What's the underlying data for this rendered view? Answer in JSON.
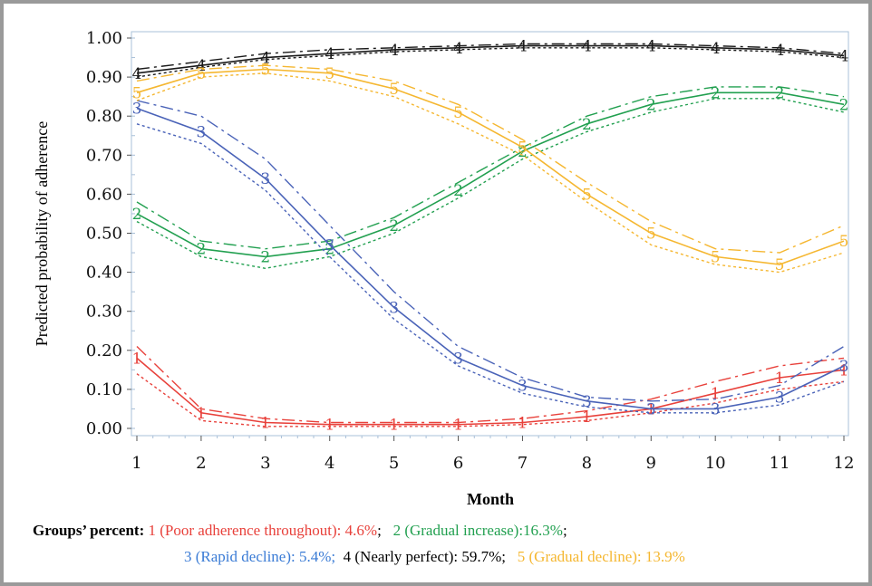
{
  "chart_data": {
    "type": "line",
    "xlabel": "Month",
    "ylabel": "Predicted probability of adherence",
    "x": [
      1,
      2,
      3,
      4,
      5,
      6,
      7,
      8,
      9,
      10,
      11,
      12
    ],
    "x_ticks": [
      "1",
      "2",
      "3",
      "4",
      "5",
      "6",
      "7",
      "8",
      "9",
      "10",
      "11",
      "12"
    ],
    "y_ticks": [
      "0.00",
      "0.10",
      "0.20",
      "0.30",
      "0.40",
      "0.50",
      "0.60",
      "0.70",
      "0.80",
      "0.90",
      "1.00"
    ],
    "xlim": [
      1,
      12
    ],
    "ylim": [
      0,
      1.0
    ],
    "grid": false,
    "series": [
      {
        "marker": "1",
        "color": "#e8413b",
        "values": [
          0.18,
          0.04,
          0.015,
          0.01,
          0.01,
          0.01,
          0.015,
          0.03,
          0.05,
          0.09,
          0.13,
          0.15
        ],
        "upper": [
          0.21,
          0.05,
          0.025,
          0.015,
          0.015,
          0.015,
          0.025,
          0.045,
          0.075,
          0.12,
          0.16,
          0.18
        ],
        "lower": [
          0.14,
          0.02,
          0.005,
          0.005,
          0.005,
          0.005,
          0.01,
          0.02,
          0.04,
          0.065,
          0.1,
          0.12
        ]
      },
      {
        "marker": "2",
        "color": "#22a050",
        "values": [
          0.55,
          0.46,
          0.44,
          0.46,
          0.52,
          0.61,
          0.71,
          0.78,
          0.83,
          0.86,
          0.86,
          0.83
        ],
        "upper": [
          0.58,
          0.48,
          0.46,
          0.48,
          0.54,
          0.63,
          0.72,
          0.8,
          0.85,
          0.875,
          0.875,
          0.85
        ],
        "lower": [
          0.53,
          0.44,
          0.41,
          0.44,
          0.5,
          0.59,
          0.69,
          0.76,
          0.81,
          0.845,
          0.845,
          0.81
        ]
      },
      {
        "marker": "3",
        "color": "#4a63b8",
        "values": [
          0.82,
          0.76,
          0.64,
          0.47,
          0.31,
          0.18,
          0.11,
          0.07,
          0.05,
          0.05,
          0.08,
          0.16
        ],
        "upper": [
          0.84,
          0.8,
          0.69,
          0.52,
          0.35,
          0.21,
          0.13,
          0.08,
          0.07,
          0.075,
          0.11,
          0.21
        ],
        "lower": [
          0.78,
          0.73,
          0.61,
          0.44,
          0.28,
          0.16,
          0.09,
          0.055,
          0.04,
          0.04,
          0.06,
          0.12
        ]
      },
      {
        "marker": "4",
        "color": "#1a1a1a",
        "values": [
          0.91,
          0.93,
          0.95,
          0.96,
          0.97,
          0.975,
          0.98,
          0.98,
          0.98,
          0.975,
          0.97,
          0.955
        ],
        "upper": [
          0.92,
          0.94,
          0.96,
          0.97,
          0.975,
          0.98,
          0.985,
          0.985,
          0.985,
          0.98,
          0.975,
          0.96
        ],
        "lower": [
          0.9,
          0.925,
          0.945,
          0.955,
          0.965,
          0.97,
          0.975,
          0.975,
          0.975,
          0.97,
          0.965,
          0.95
        ]
      },
      {
        "marker": "5",
        "color": "#f5b731",
        "values": [
          0.86,
          0.91,
          0.92,
          0.91,
          0.87,
          0.81,
          0.72,
          0.6,
          0.5,
          0.44,
          0.42,
          0.48
        ],
        "upper": [
          0.89,
          0.92,
          0.93,
          0.92,
          0.89,
          0.83,
          0.74,
          0.63,
          0.53,
          0.46,
          0.45,
          0.52
        ],
        "lower": [
          0.84,
          0.9,
          0.91,
          0.89,
          0.85,
          0.78,
          0.7,
          0.58,
          0.47,
          0.42,
          0.4,
          0.45
        ]
      }
    ]
  },
  "legend": {
    "heading": "Groups’ percent:",
    "row1": [
      {
        "text": " 1 (Poor adherence throughout): 4.6%",
        "color": "#e8413b"
      },
      {
        "text": ";   ",
        "color": "#000000"
      },
      {
        "text": "2 (Gradual increase):16.3%",
        "color": "#22a050"
      },
      {
        "text": ";",
        "color": "#000000"
      }
    ],
    "row2": [
      {
        "text": "3 (Rapid decline): 5.4%;",
        "color": "#3a7bd5"
      },
      {
        "text": "  4 (Nearly perfect): 59.7%;   ",
        "color": "#000000"
      },
      {
        "text": "5 (Gradual decline): 13.9%",
        "color": "#f5b731"
      }
    ]
  }
}
